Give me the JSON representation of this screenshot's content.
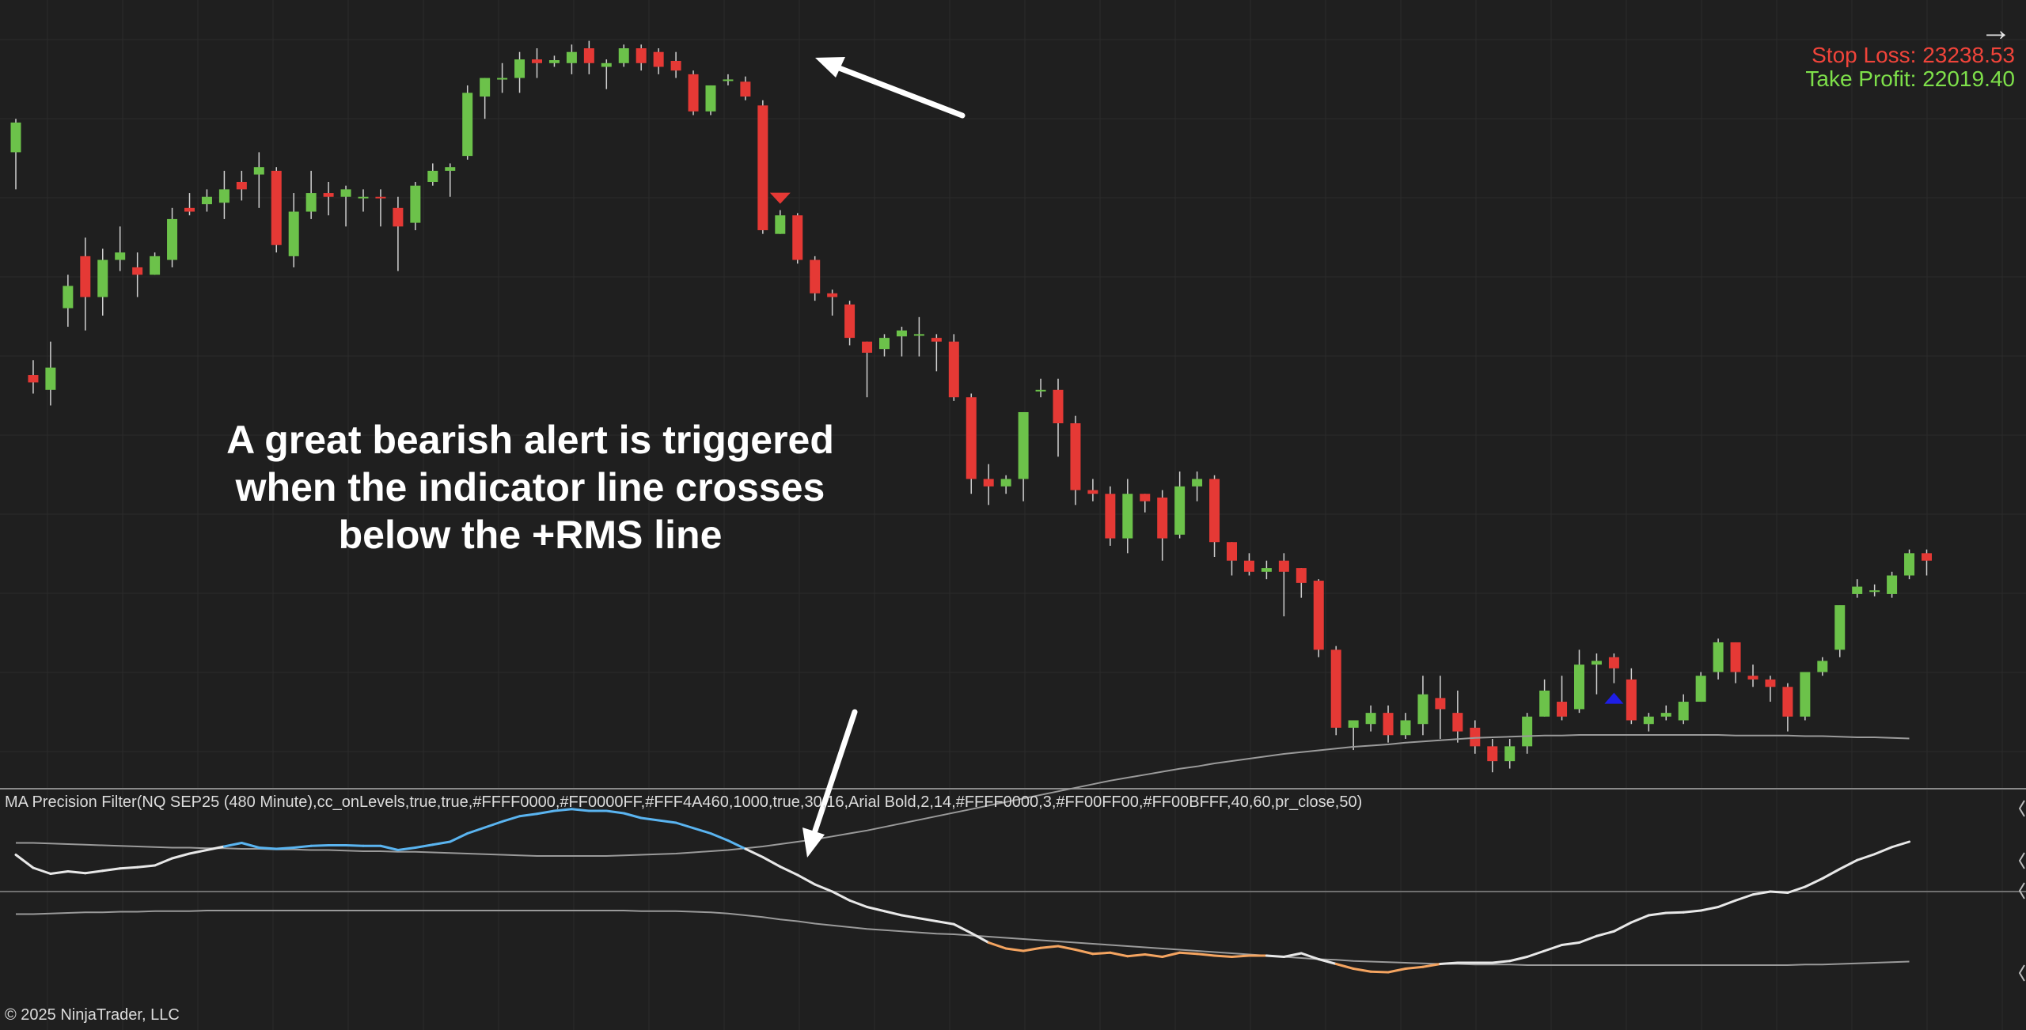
{
  "trade_levels": {
    "stop_loss": "Stop Loss: 23238.53",
    "take_profit": "Take Profit: 22019.40"
  },
  "callout_lines": [
    "A great bearish alert is triggered",
    "when the indicator line crosses",
    "below the +RMS line"
  ],
  "indicator_label": "MA Precision Filter(NQ SEP25 (480 Minute),cc_onLevels,true,true,#FFFF0000,#FF0000FF,#FFF4A460,1000,true,30,16,Arial Bold,2,14,#FFFF0000,3,#FF00FF00,#FF00BFFF,40,60,pr_close,50)",
  "copyright": "© 2025 NinjaTrader, LLC",
  "icons": {
    "navigation": "right-arrow-icon",
    "sell_signal": "triangle-down-icon",
    "buy_signal": "triangle-up-icon"
  },
  "colors": {
    "background": "#1f1f1f",
    "grid": "#2b2b2b",
    "bull_candle": "#6cc24a",
    "bear_candle": "#e53935",
    "wick": "#d0d0d0",
    "indicator_neutral": "#e8e8e8",
    "indicator_bull": "#5ab4f0",
    "indicator_bear": "#f4a460",
    "rms_line": "#9a9a9a",
    "stop_loss_text": "#f0443a",
    "take_profit_text": "#7ee04a",
    "sell_marker": "#e53935",
    "buy_marker": "#1e1ee6",
    "annotation_arrow": "#ffffff"
  },
  "chart_data": {
    "type": "candlestick",
    "instrument": "NQ SEP25 (480 Minute)",
    "price_scale_visible": false,
    "candles_ohlc": [
      [
        23340,
        23380,
        23290,
        23385
      ],
      [
        23040,
        23030,
        23015,
        23060
      ],
      [
        23020,
        23050,
        22999,
        23085
      ],
      [
        23130,
        23160,
        23105,
        23175
      ],
      [
        23200,
        23145,
        23100,
        23225
      ],
      [
        23145,
        23195,
        23120,
        23210
      ],
      [
        23195,
        23205,
        23180,
        23240
      ],
      [
        23185,
        23175,
        23145,
        23205
      ],
      [
        23175,
        23200,
        23175,
        23205
      ],
      [
        23195,
        23250,
        23185,
        23265
      ],
      [
        23265,
        23260,
        23255,
        23285
      ],
      [
        23270,
        23280,
        23260,
        23290
      ],
      [
        23272,
        23290,
        23250,
        23315
      ],
      [
        23300,
        23290,
        23275,
        23315
      ],
      [
        23310,
        23320,
        23265,
        23340
      ],
      [
        23315,
        23215,
        23205,
        23320
      ],
      [
        23200,
        23260,
        23185,
        23285
      ],
      [
        23260,
        23285,
        23250,
        23315
      ],
      [
        23285,
        23280,
        23255,
        23300
      ],
      [
        23280,
        23290,
        23240,
        23295
      ],
      [
        23280,
        23280,
        23260,
        23290
      ],
      [
        23280,
        23278,
        23240,
        23290
      ],
      [
        23265,
        23240,
        23180,
        23280
      ],
      [
        23245,
        23295,
        23235,
        23300
      ],
      [
        23300,
        23315,
        23295,
        23325
      ],
      [
        23315,
        23320,
        23280,
        23325
      ],
      [
        23335,
        23420,
        23330,
        23430
      ],
      [
        23415,
        23440,
        23385,
        23440
      ],
      [
        23440,
        23440,
        23420,
        23460
      ],
      [
        23440,
        23465,
        23420,
        23475
      ],
      [
        23465,
        23460,
        23440,
        23480
      ],
      [
        23460,
        23464,
        23455,
        23470
      ],
      [
        23460,
        23475,
        23445,
        23485
      ],
      [
        23480,
        23460,
        23445,
        23490
      ],
      [
        23455,
        23460,
        23425,
        23465
      ],
      [
        23460,
        23480,
        23455,
        23485
      ],
      [
        23480,
        23460,
        23450,
        23485
      ],
      [
        23475,
        23455,
        23445,
        23480
      ],
      [
        23463,
        23450,
        23440,
        23475
      ],
      [
        23445,
        23395,
        23390,
        23450
      ],
      [
        23395,
        23430,
        23390,
        23430
      ],
      [
        23436,
        23438,
        23430,
        23445
      ],
      [
        23435,
        23415,
        23410,
        23442
      ],
      [
        23403,
        23235,
        23230,
        23410
      ],
      [
        23230,
        23255,
        23230,
        23262
      ],
      [
        23255,
        23195,
        23190,
        23258
      ],
      [
        23195,
        23150,
        23140,
        23200
      ],
      [
        23150,
        23145,
        23120,
        23155
      ],
      [
        23135,
        23090,
        23080,
        23140
      ],
      [
        23085,
        23070,
        23010,
        23085
      ],
      [
        23075,
        23090,
        23065,
        23095
      ],
      [
        23092,
        23100,
        23065,
        23105
      ],
      [
        23095,
        23095,
        23065,
        23118
      ],
      [
        23090,
        23085,
        23045,
        23095
      ],
      [
        23085,
        23010,
        23005,
        23095
      ],
      [
        23010,
        22900,
        22880,
        23015
      ],
      [
        22900,
        22890,
        22865,
        22920
      ],
      [
        22890,
        22900,
        22880,
        22905
      ],
      [
        22900,
        22990,
        22870,
        22990
      ],
      [
        23020,
        23020,
        23010,
        23035
      ],
      [
        23020,
        22975,
        22930,
        23035
      ],
      [
        22975,
        22885,
        22865,
        22985
      ],
      [
        22885,
        22880,
        22870,
        22900
      ],
      [
        22880,
        22820,
        22810,
        22890
      ],
      [
        22820,
        22880,
        22800,
        22900
      ],
      [
        22880,
        22870,
        22855,
        22880
      ],
      [
        22875,
        22820,
        22790,
        22885
      ],
      [
        22825,
        22890,
        22820,
        22910
      ],
      [
        22890,
        22900,
        22870,
        22910
      ],
      [
        22900,
        22815,
        22795,
        22905
      ],
      [
        22815,
        22790,
        22770,
        22815
      ],
      [
        22790,
        22775,
        22770,
        22800
      ],
      [
        22775,
        22780,
        22765,
        22790
      ],
      [
        22790,
        22775,
        22715,
        22800
      ],
      [
        22780,
        22760,
        22740,
        22780
      ],
      [
        22763,
        22670,
        22660,
        22765
      ],
      [
        22670,
        22565,
        22555,
        22675
      ],
      [
        22565,
        22575,
        22535,
        22575
      ],
      [
        22570,
        22585,
        22560,
        22595
      ],
      [
        22585,
        22555,
        22545,
        22595
      ],
      [
        22555,
        22575,
        22550,
        22585
      ],
      [
        22570,
        22610,
        22555,
        22635
      ],
      [
        22605,
        22590,
        22550,
        22635
      ],
      [
        22585,
        22560,
        22545,
        22615
      ],
      [
        22565,
        22540,
        22530,
        22575
      ],
      [
        22540,
        22520,
        22505,
        22550
      ],
      [
        22520,
        22540,
        22510,
        22550
      ],
      [
        22540,
        22580,
        22530,
        22585
      ],
      [
        22580,
        22615,
        22580,
        22630
      ],
      [
        22600,
        22580,
        22575,
        22635
      ],
      [
        22590,
        22650,
        22585,
        22670
      ],
      [
        22650,
        22655,
        22610,
        22665
      ],
      [
        22660,
        22645,
        22625,
        22665
      ],
      [
        22630,
        22575,
        22570,
        22645
      ],
      [
        22570,
        22580,
        22560,
        22585
      ],
      [
        22580,
        22585,
        22575,
        22595
      ],
      [
        22575,
        22600,
        22570,
        22610
      ],
      [
        22600,
        22635,
        22600,
        22640
      ],
      [
        22640,
        22680,
        22630,
        22685
      ],
      [
        22680,
        22640,
        22625,
        22680
      ],
      [
        22635,
        22630,
        22620,
        22650
      ],
      [
        22630,
        22620,
        22600,
        22635
      ],
      [
        22620,
        22580,
        22560,
        22625
      ],
      [
        22580,
        22640,
        22575,
        22640
      ],
      [
        22640,
        22655,
        22635,
        22660
      ],
      [
        22670,
        22730,
        22660,
        22730
      ],
      [
        22745,
        22755,
        22740,
        22765
      ],
      [
        22748,
        22750,
        22742,
        22758
      ],
      [
        22745,
        22770,
        22740,
        22775
      ],
      [
        22770,
        22800,
        22765,
        22805
      ],
      [
        22800,
        22790,
        22770,
        22805
      ]
    ],
    "signals": [
      {
        "type": "sell",
        "candle_index": 44
      },
      {
        "type": "buy",
        "candle_index": 92
      }
    ],
    "indicator": {
      "name": "MA Precision Filter",
      "bull_color_key": "indicator_bull",
      "bear_color_key": "indicator_bear",
      "values": [
        0.62,
        0.4,
        0.3,
        0.34,
        0.31,
        0.35,
        0.39,
        0.41,
        0.44,
        0.56,
        0.64,
        0.7,
        0.76,
        0.82,
        0.74,
        0.72,
        0.74,
        0.77,
        0.78,
        0.78,
        0.77,
        0.77,
        0.7,
        0.74,
        0.79,
        0.84,
        0.98,
        1.08,
        1.18,
        1.27,
        1.31,
        1.36,
        1.39,
        1.36,
        1.36,
        1.32,
        1.24,
        1.2,
        1.16,
        1.07,
        0.98,
        0.86,
        0.72,
        0.58,
        0.42,
        0.28,
        0.12,
        0.0,
        -0.15,
        -0.26,
        -0.33,
        -0.4,
        -0.45,
        -0.5,
        -0.55,
        -0.7,
        -0.86,
        -0.96,
        -1.0,
        -0.95,
        -0.92,
        -0.98,
        -1.05,
        -1.03,
        -1.09,
        -1.06,
        -1.1,
        -1.03,
        -1.05,
        -1.08,
        -1.1,
        -1.08,
        -1.08,
        -1.1,
        -1.04,
        -1.14,
        -1.22,
        -1.3,
        -1.35,
        -1.36,
        -1.3,
        -1.27,
        -1.22,
        -1.2,
        -1.2,
        -1.2,
        -1.17,
        -1.1,
        -1.0,
        -0.9,
        -0.86,
        -0.75,
        -0.67,
        -0.52,
        -0.4,
        -0.36,
        -0.35,
        -0.32,
        -0.26,
        -0.15,
        -0.05,
        0.0,
        -0.02,
        0.08,
        0.22,
        0.38,
        0.53,
        0.63,
        0.75,
        0.84
      ],
      "upper_band": [
        0.82,
        0.82,
        0.81,
        0.8,
        0.79,
        0.78,
        0.77,
        0.76,
        0.75,
        0.74,
        0.74,
        0.73,
        0.73,
        0.72,
        0.72,
        0.71,
        0.71,
        0.7,
        0.7,
        0.69,
        0.68,
        0.68,
        0.67,
        0.67,
        0.66,
        0.65,
        0.64,
        0.63,
        0.62,
        0.61,
        0.6,
        0.6,
        0.6,
        0.6,
        0.6,
        0.61,
        0.62,
        0.63,
        0.64,
        0.66,
        0.68,
        0.7,
        0.73,
        0.76,
        0.8,
        0.84,
        0.88,
        0.93,
        0.98,
        1.03,
        1.09,
        1.15,
        1.21,
        1.27,
        1.33,
        1.39,
        1.45,
        1.51,
        1.57,
        1.63,
        1.69,
        1.75,
        1.81,
        1.87,
        1.92,
        1.97,
        2.02,
        2.07,
        2.11,
        2.16,
        2.2,
        2.24,
        2.28,
        2.32,
        2.35,
        2.38,
        2.41,
        2.44,
        2.46,
        2.48,
        2.51,
        2.53,
        2.55,
        2.57,
        2.59,
        2.6,
        2.61,
        2.62,
        2.63,
        2.63,
        2.64,
        2.64,
        2.64,
        2.64,
        2.64,
        2.64,
        2.64,
        2.64,
        2.64,
        2.63,
        2.63,
        2.63,
        2.63,
        2.62,
        2.62,
        2.61,
        2.6,
        2.6,
        2.59,
        2.58
      ],
      "lower_band": [
        -0.38,
        -0.38,
        -0.37,
        -0.36,
        -0.35,
        -0.35,
        -0.34,
        -0.34,
        -0.33,
        -0.33,
        -0.33,
        -0.32,
        -0.32,
        -0.32,
        -0.32,
        -0.32,
        -0.32,
        -0.32,
        -0.32,
        -0.32,
        -0.32,
        -0.32,
        -0.32,
        -0.32,
        -0.32,
        -0.32,
        -0.32,
        -0.32,
        -0.32,
        -0.32,
        -0.32,
        -0.32,
        -0.32,
        -0.32,
        -0.32,
        -0.32,
        -0.33,
        -0.33,
        -0.33,
        -0.34,
        -0.35,
        -0.37,
        -0.4,
        -0.43,
        -0.47,
        -0.5,
        -0.54,
        -0.57,
        -0.6,
        -0.63,
        -0.65,
        -0.67,
        -0.69,
        -0.71,
        -0.72,
        -0.74,
        -0.76,
        -0.78,
        -0.8,
        -0.82,
        -0.84,
        -0.86,
        -0.88,
        -0.9,
        -0.92,
        -0.94,
        -0.96,
        -0.98,
        -1.0,
        -1.02,
        -1.04,
        -1.06,
        -1.08,
        -1.1,
        -1.12,
        -1.14,
        -1.15,
        -1.17,
        -1.18,
        -1.19,
        -1.2,
        -1.21,
        -1.22,
        -1.22,
        -1.23,
        -1.23,
        -1.23,
        -1.24,
        -1.24,
        -1.24,
        -1.24,
        -1.24,
        -1.24,
        -1.24,
        -1.24,
        -1.24,
        -1.24,
        -1.24,
        -1.24,
        -1.24,
        -1.24,
        -1.24,
        -1.24,
        -1.23,
        -1.23,
        -1.22,
        -1.21,
        -1.2,
        -1.19,
        -1.18
      ],
      "zero_line": 0
    }
  }
}
